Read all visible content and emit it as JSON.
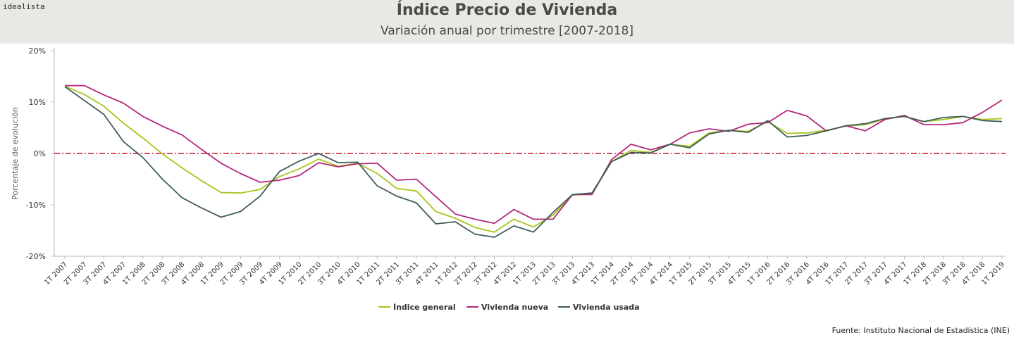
{
  "brand": "idealista",
  "source": "Fuente: Instituto Nacional de Estadística (INE)",
  "chart_data": {
    "type": "line",
    "title": "Índice Precio de Vivienda",
    "subtitle": "Variación anual por trimestre [2007-2018]",
    "xlabel": "",
    "ylabel": "Porcentaje de evolución",
    "ylim": [
      -20,
      20
    ],
    "yticks": [
      -20,
      -10,
      0,
      10,
      20
    ],
    "ytick_labels": [
      "-20%",
      "-10%",
      "0%",
      "10%",
      "20%"
    ],
    "grid": false,
    "legend": "bottom-center",
    "reference_line": {
      "y": 0,
      "color": "#c8102e",
      "style": "dash-dot"
    },
    "categories": [
      "1T 2007",
      "2T 2007",
      "3T 2007",
      "4T 2007",
      "1T 2008",
      "2T 2008",
      "3T 2008",
      "4T 2008",
      "1T 2009",
      "2T 2009",
      "3T 2009",
      "4T 2009",
      "1T 2010",
      "2T 2010",
      "3T 2010",
      "4T 2010",
      "1T 2011",
      "2T 2011",
      "3T 2011",
      "4T 2011",
      "1T 2012",
      "2T 2012",
      "3T 2012",
      "4T 2012",
      "1T 2013",
      "2T 2013",
      "3T 2013",
      "4T 2013",
      "1T 2014",
      "2T 2014",
      "3T 2014",
      "4T 2014",
      "1T 2015",
      "2T 2015",
      "3T 2015",
      "4T 2015",
      "1T 2016",
      "2T 2016",
      "3T 2016",
      "4T 2016",
      "1T 2017",
      "2T 2017",
      "3T 2017",
      "4T 2017",
      "1T 2018",
      "2T 2018",
      "3T 2018",
      "4T 2018",
      "1T 2019"
    ],
    "series": [
      {
        "name": "Índice general",
        "color": "#a8c41c",
        "values": [
          13.1,
          11.5,
          9.2,
          5.9,
          3.0,
          -0.1,
          -2.8,
          -5.3,
          -7.6,
          -7.7,
          -7.0,
          -4.5,
          -3.0,
          -1.1,
          -2.5,
          -1.9,
          -3.9,
          -6.8,
          -7.3,
          -11.3,
          -12.6,
          -14.4,
          -15.3,
          -12.8,
          -14.3,
          -12.0,
          -8.1,
          -7.9,
          -1.6,
          0.6,
          0.2,
          1.8,
          1.4,
          4.0,
          4.5,
          4.3,
          6.2,
          3.9,
          4.0,
          4.5,
          5.3,
          5.6,
          6.7,
          7.2,
          6.2,
          6.6,
          7.2,
          6.6,
          6.8
        ]
      },
      {
        "name": "Vivienda nueva",
        "color": "#b5277a",
        "values": [
          13.2,
          13.2,
          11.4,
          9.8,
          7.2,
          5.3,
          3.6,
          0.8,
          -1.9,
          -3.9,
          -5.6,
          -5.2,
          -4.3,
          -1.8,
          -2.6,
          -2.0,
          -1.9,
          -5.2,
          -5.0,
          -8.4,
          -11.8,
          -12.8,
          -13.6,
          -10.9,
          -12.8,
          -12.8,
          -8.0,
          -8.0,
          -1.2,
          1.8,
          0.7,
          1.8,
          4.0,
          4.8,
          4.3,
          5.7,
          6.0,
          8.4,
          7.3,
          4.4,
          5.4,
          4.4,
          6.6,
          7.4,
          5.6,
          5.6,
          6.0,
          8.0,
          10.4
        ]
      },
      {
        "name": "Vivienda usada",
        "color": "#3f5e5a",
        "values": [
          13.0,
          10.3,
          7.6,
          2.3,
          -0.8,
          -5.0,
          -8.6,
          -10.6,
          -12.4,
          -11.3,
          -8.3,
          -3.5,
          -1.5,
          0.0,
          -1.8,
          -1.7,
          -6.3,
          -8.3,
          -9.6,
          -13.7,
          -13.3,
          -15.7,
          -16.3,
          -14.1,
          -15.3,
          -11.5,
          -8.0,
          -7.7,
          -1.6,
          0.2,
          0.1,
          1.8,
          1.1,
          3.8,
          4.5,
          4.1,
          6.4,
          3.2,
          3.5,
          4.4,
          5.4,
          5.8,
          6.8,
          7.2,
          6.2,
          7.0,
          7.2,
          6.4,
          6.2
        ]
      }
    ]
  }
}
